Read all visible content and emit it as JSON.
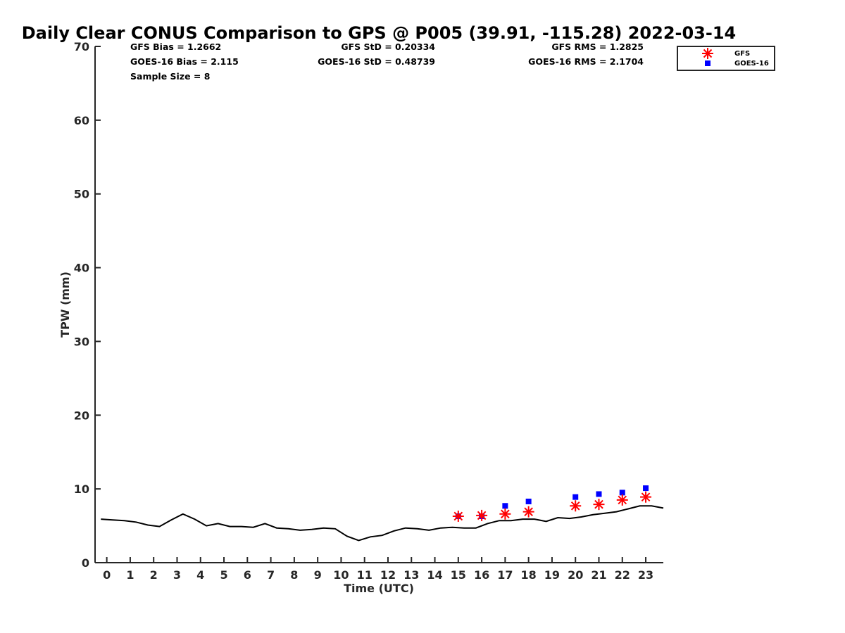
{
  "chart_data": {
    "type": "line",
    "title": "Daily Clear CONUS Comparison to GPS @ P005 (39.91, -115.28) 2022-03-14",
    "xlabel": "Time (UTC)",
    "ylabel": "TPW (mm)",
    "xlim": [
      -0.5,
      23.75
    ],
    "ylim": [
      0,
      70
    ],
    "xticks": [
      "0",
      "1",
      "2",
      "3",
      "4",
      "5",
      "6",
      "7",
      "8",
      "9",
      "10",
      "11",
      "12",
      "13",
      "14",
      "15",
      "16",
      "17",
      "18",
      "19",
      "20",
      "21",
      "22",
      "23"
    ],
    "yticks": [
      "0",
      "10",
      "20",
      "30",
      "40",
      "50",
      "60",
      "70"
    ],
    "grid": false,
    "legend_position": "top-right",
    "stats": {
      "gfs_bias": "GFS Bias = 1.2662",
      "goes_bias": "GOES-16 Bias = 2.115",
      "sample_size": "Sample Size = 8",
      "gfs_std": "GFS StD = 0.20334",
      "goes_std": "GOES-16 StD = 0.48739",
      "gfs_rms": "GFS RMS = 1.2825",
      "goes_rms": "GOES-16 RMS = 2.1704"
    },
    "series": [
      {
        "type": "line",
        "color": "#000000",
        "x": [
          -0.25,
          0.25,
          0.75,
          1.25,
          1.75,
          2.25,
          2.75,
          3.25,
          3.75,
          4.25,
          4.75,
          5.25,
          5.75,
          6.25,
          6.75,
          7.25,
          7.75,
          8.25,
          8.75,
          9.25,
          9.75,
          10.25,
          10.75,
          11.25,
          11.75,
          12.25,
          12.75,
          13.25,
          13.75,
          14.25,
          14.75,
          15.25,
          15.75,
          16.25,
          16.75,
          17.25,
          17.75,
          18.25,
          18.75,
          19.25,
          19.75,
          20.25,
          20.75,
          21.25,
          21.75,
          22.25,
          22.75,
          23.25,
          23.75
        ],
        "values": [
          5.9,
          5.8,
          5.7,
          5.5,
          5.1,
          4.9,
          5.8,
          6.6,
          5.9,
          5.0,
          5.3,
          4.9,
          4.9,
          4.8,
          5.3,
          4.7,
          4.6,
          4.4,
          4.5,
          4.7,
          4.6,
          3.6,
          3.0,
          3.5,
          3.7,
          4.3,
          4.7,
          4.6,
          4.4,
          4.7,
          4.8,
          4.7,
          4.7,
          5.3,
          5.7,
          5.7,
          5.9,
          5.9,
          5.6,
          6.1,
          6.0,
          6.2,
          6.5,
          6.7,
          6.9,
          7.3,
          7.7,
          7.7,
          7.4
        ]
      },
      {
        "name": "GFS",
        "type": "scatter",
        "marker": "asterisk",
        "color": "#ff0000",
        "x": [
          15,
          16,
          17,
          18,
          20,
          21,
          22,
          23
        ],
        "values": [
          6.3,
          6.4,
          6.6,
          6.9,
          7.7,
          7.9,
          8.5,
          8.9
        ]
      },
      {
        "name": "GOES-16",
        "type": "scatter",
        "marker": "square",
        "color": "#0000ff",
        "x": [
          15,
          16,
          17,
          18,
          20,
          21,
          22,
          23
        ],
        "values": [
          6.3,
          6.3,
          7.7,
          8.3,
          8.9,
          9.3,
          9.5,
          10.1
        ]
      }
    ]
  }
}
